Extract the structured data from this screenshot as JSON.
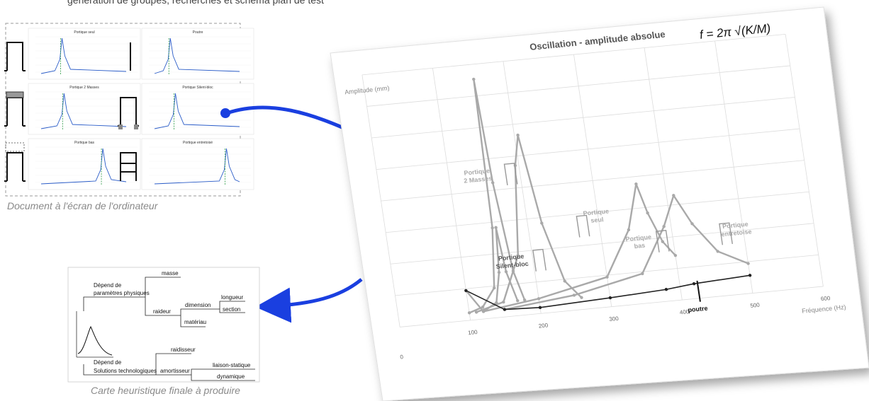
{
  "top_text_fragment": "génération de groupes, recherches et schéma plan de test",
  "screen_doc": {
    "caption": "Document à l'écran de l'ordinateur",
    "panels": [
      {
        "title": "Portique seul",
        "peak_x": 130,
        "peak_y": 125
      },
      {
        "title": "Poutre",
        "peak_x": 105,
        "peak_y": 22
      },
      {
        "title": "Portique 2 Masses",
        "peak_x": 140,
        "peak_y": 140
      },
      {
        "title": "Portique Silent-bloc",
        "peak_x": 130,
        "peak_y": 35
      },
      {
        "title": "Portique bas",
        "peak_x": 330,
        "peak_y": 60
      },
      {
        "title": "Portique entretoisé",
        "peak_x": 380,
        "peak_y": 50
      }
    ]
  },
  "mindmap": {
    "caption": "Carte heuristique finale à produire",
    "branch1": "Dépend de\nparamètres physiques",
    "masse": "masse",
    "raideur": "raideur",
    "dimension": "dimension",
    "longueur": "longueur",
    "section": "section",
    "materiau": "matériau",
    "branch2": "Dépend de\nSolutions technologiques",
    "raidisseur": "raidisseur",
    "amortisseur": "amortisseur",
    "liaison": "liaison-statique",
    "dynamique": "dynamique"
  },
  "big_chart": {
    "title": "Oscillation - amplitude absolue",
    "formula": "f = 2π √(K/M)",
    "ylabel": "Amplitude (mm)",
    "xlabel": "Fréquence (Hz)",
    "xticks": [
      "0",
      "100",
      "200",
      "300",
      "400",
      "500",
      "600"
    ],
    "labels": {
      "p2m": "Portique\n2 Masses",
      "pseul": "Portique\nseul",
      "psilent": "Portique\nSilent-bloc",
      "pbas": "Portique\nbas",
      "pent": "Portique\nentretoise",
      "poutre": "poutre"
    }
  },
  "chart_data": {
    "type": "line",
    "title": "Oscillation - amplitude absolue",
    "xlabel": "Fréquence (Hz)",
    "ylabel": "Amplitude (mm)",
    "xlim": [
      0,
      600
    ],
    "series": [
      {
        "name": "Portique 2 Masses",
        "x": [
          100,
          120,
          140,
          150,
          155,
          160,
          170,
          180
        ],
        "y": [
          5,
          8,
          20,
          60,
          160,
          90,
          30,
          10
        ]
      },
      {
        "name": "Portique seul",
        "x": [
          110,
          150,
          180,
          195,
          205,
          220,
          240,
          260
        ],
        "y": [
          5,
          10,
          40,
          100,
          120,
          60,
          20,
          8
        ]
      },
      {
        "name": "Portique Silent-bloc",
        "x": [
          100,
          120,
          140,
          150,
          155,
          160,
          170
        ],
        "y": [
          20,
          5,
          10,
          30,
          60,
          30,
          10
        ]
      },
      {
        "name": "Portique bas",
        "x": [
          120,
          200,
          300,
          340,
          360,
          370,
          385,
          400
        ],
        "y": [
          5,
          10,
          20,
          50,
          80,
          60,
          40,
          30
        ]
      },
      {
        "name": "Portique entretoise",
        "x": [
          150,
          250,
          350,
          390,
          410,
          430,
          460,
          500
        ],
        "y": [
          5,
          10,
          20,
          50,
          70,
          50,
          30,
          20
        ]
      },
      {
        "name": "poutre",
        "x": [
          100,
          150,
          200,
          300,
          380,
          420,
          500
        ],
        "y": [
          20,
          5,
          4,
          6,
          8,
          10,
          12
        ]
      }
    ]
  },
  "colors": {
    "arrow": "#1a3fe0",
    "series_gray": "#a9a9a9",
    "poutre": "#222222"
  }
}
